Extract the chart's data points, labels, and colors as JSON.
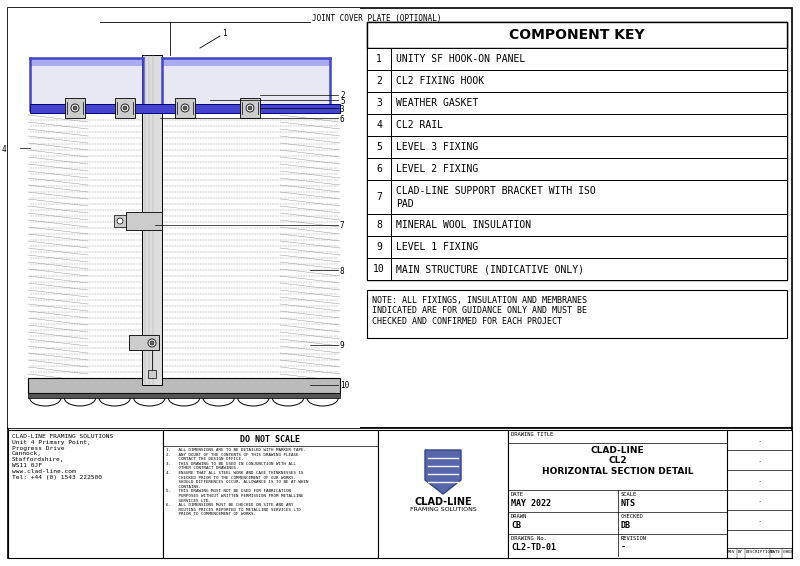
{
  "bg_color": "#ffffff",
  "component_key_title": "COMPONENT KEY",
  "components": [
    {
      "num": "1",
      "desc": "UNITY SF HOOK-ON PANEL"
    },
    {
      "num": "2",
      "desc": "CL2 FIXING HOOK"
    },
    {
      "num": "3",
      "desc": "WEATHER GASKET"
    },
    {
      "num": "4",
      "desc": "CL2 RAIL"
    },
    {
      "num": "5",
      "desc": "LEVEL 3 FIXING"
    },
    {
      "num": "6",
      "desc": "LEVEL 2 FIXING"
    },
    {
      "num": "7",
      "desc": "CLAD-LINE SUPPORT BRACKET WITH ISO\nPAD"
    },
    {
      "num": "8",
      "desc": "MINERAL WOOL INSULATION"
    },
    {
      "num": "9",
      "desc": "LEVEL 1 FIXING"
    },
    {
      "num": "10",
      "desc": "MAIN STRUCTURE (INDICATIVE ONLY)"
    }
  ],
  "note_text": "NOTE: ALL FIXINGS, INSULATION AND MEMBRANES\nINDICATED ARE FOR GUIDANCE ONLY AND MUST BE\nCHECKED AND CONFIRMED FOR EACH PROJECT",
  "joint_cover_label": "JOINT COVER PLATE (OPTIONAL)",
  "callout_labels": [
    "1",
    "2",
    "3",
    "4",
    "5",
    "6",
    "7",
    "8",
    "9",
    "10"
  ],
  "title_block": {
    "company": "CLAD-LINE FRAMING SOLUTIONS\nUnit 4 Primary Point,\nProgress Drive\nCannock,\nStaffordshire,\nWS11 0JF\nwww.clad-line.com\nTel: +44 (0) 1543 222500",
    "do_not_scale": "DO NOT SCALE",
    "drawing_title_block": "CLAD-LINE\nCL2\nHORIZONTAL SECTION DETAIL",
    "date": "MAY 2022",
    "scale": "NTS",
    "drawn": "CB",
    "checked": "DB",
    "drawing_no": "CL2-TD-01",
    "revision": "-",
    "date_label": "DATE",
    "scale_label": "SCALE",
    "drawn_label": "DRAWN",
    "checked_label": "CHECKED",
    "drawingno_label": "DRAWING No.",
    "revision_label": "REVISION",
    "drawingtitle_label": "DRAWING TITLE",
    "rev_headers": [
      "REV",
      "BY",
      "DESCRIPTION",
      "DATE",
      "CHKD"
    ]
  },
  "blue": "#4444cc",
  "blue_light": "#aaaaee",
  "dark": "#333333",
  "mid_gray": "#888888",
  "light_gray": "#cccccc",
  "insul_gray": "#dddddd"
}
